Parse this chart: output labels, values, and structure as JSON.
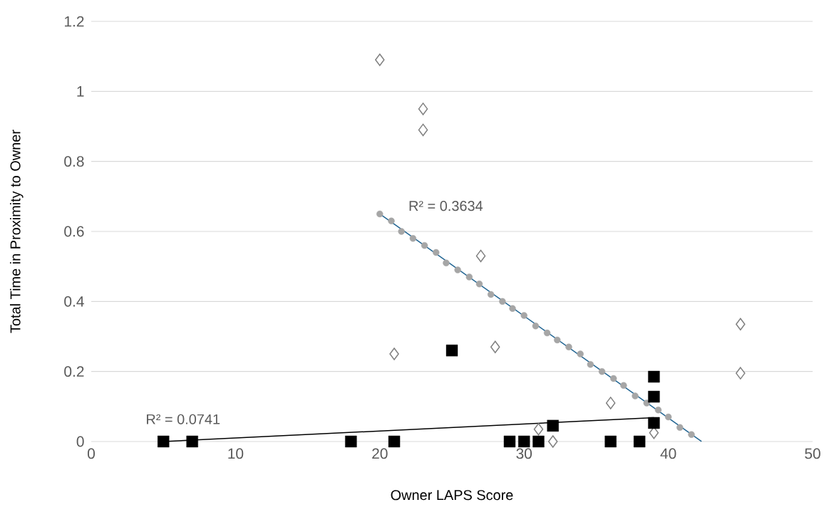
{
  "chart_data": {
    "type": "scatter",
    "xlabel": "Owner LAPS Score",
    "ylabel": "Total Time in Proximity to Owner",
    "xlim": [
      0,
      50
    ],
    "xticks": [
      0,
      10,
      20,
      30,
      40,
      50
    ],
    "ylim": [
      0,
      1.2
    ],
    "yticks": [
      0,
      0.2,
      0.4,
      0.6,
      0.8,
      1,
      1.2
    ],
    "grid": "y",
    "series": [
      {
        "type": "line",
        "color": "#1f6391",
        "marker": "none",
        "x": [
          20,
          42.3
        ],
        "values": [
          0.65,
          0
        ]
      },
      {
        "color": "#a6a6a6",
        "marker": "circle",
        "x": [
          20,
          20.8,
          21.5,
          22.3,
          23.1,
          23.9,
          24.6,
          25.4,
          26.2,
          26.9,
          27.7,
          28.5,
          29.2,
          30,
          30.8,
          31.6,
          32.3,
          33.1,
          33.9,
          34.6,
          35.4,
          36.2,
          36.9,
          37.7,
          38.5,
          39.3,
          40,
          40.8,
          41.6
        ],
        "values": [
          0.65,
          0.63,
          0.6,
          0.58,
          0.56,
          0.54,
          0.51,
          0.49,
          0.47,
          0.45,
          0.42,
          0.4,
          0.38,
          0.36,
          0.33,
          0.31,
          0.29,
          0.27,
          0.25,
          0.22,
          0.2,
          0.18,
          0.16,
          0.13,
          0.11,
          0.09,
          0.07,
          0.04,
          0.02
        ]
      },
      {
        "type": "line",
        "color": "#000000",
        "marker": "none",
        "x": [
          5,
          39
        ],
        "values": [
          0,
          0.068
        ]
      },
      {
        "color": "#7f7f7f",
        "marker": "diamond",
        "x": [
          20,
          23,
          23,
          21,
          27,
          28,
          31,
          32,
          36,
          39,
          45,
          45
        ],
        "values": [
          1.09,
          0.95,
          0.89,
          0.25,
          0.53,
          0.27,
          0.035,
          0,
          0.11,
          0.025,
          0.335,
          0.195
        ]
      },
      {
        "color": "#000000",
        "marker": "square",
        "x": [
          5,
          7,
          18,
          21,
          25,
          29,
          30,
          31,
          32,
          36,
          38,
          39,
          39,
          39
        ],
        "values": [
          0,
          0,
          0,
          0,
          0.26,
          0,
          0,
          0,
          0.045,
          0,
          0,
          0.185,
          0.128,
          0.053
        ]
      }
    ],
    "annotations": [
      "R² = 0.3634",
      "R² = 0.0741"
    ]
  }
}
